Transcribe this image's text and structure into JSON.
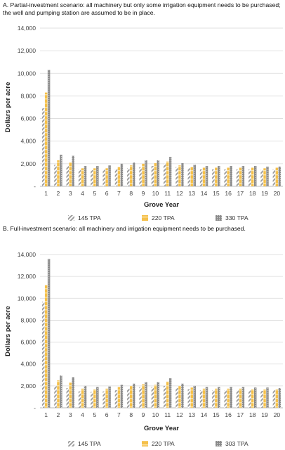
{
  "panels": [
    {
      "title": "A. Partial-investment scenario: all machinery but only some irrigation equipment needs to be purchased; the well and pumping station are assumed to be in place."
    },
    {
      "title": "B. Full-investment scenario: all machinery and irrigation equipment needs to be purchased."
    }
  ],
  "colors": {
    "s1": "#9e9e9e",
    "s2": "#f5c04a",
    "s3": "#8a8a8a",
    "grid": "#d9d9d9"
  },
  "chart_data": [
    {
      "type": "bar",
      "title": "A. Partial-investment scenario: all machinery but only some irrigation equipment needs to be purchased; the well and pumping station are assumed to be in place.",
      "xlabel": "Grove Year",
      "ylabel": "Dollars per acre",
      "ylim": [
        0,
        14000
      ],
      "yticks": [
        "-",
        "2,000",
        "4,000",
        "6,000",
        "8,000",
        "10,000",
        "12,000",
        "14,000"
      ],
      "grid": true,
      "legend": "bottom",
      "categories": [
        "1",
        "2",
        "3",
        "4",
        "5",
        "6",
        "7",
        "8",
        "9",
        "10",
        "11",
        "12",
        "13",
        "14",
        "15",
        "16",
        "17",
        "18",
        "19",
        "20"
      ],
      "series": [
        {
          "name": "145 TPA",
          "values": [
            6900,
            1900,
            1800,
            1500,
            1450,
            1500,
            1550,
            1600,
            1700,
            1800,
            2000,
            1700,
            1600,
            1500,
            1500,
            1500,
            1500,
            1500,
            1450,
            1500
          ]
        },
        {
          "name": "220 TPA",
          "values": [
            8300,
            2300,
            2100,
            1600,
            1600,
            1600,
            1700,
            1850,
            2000,
            2050,
            2200,
            1850,
            1700,
            1650,
            1650,
            1650,
            1650,
            1650,
            1600,
            1650
          ]
        },
        {
          "name": "330 TPA",
          "values": [
            10300,
            2800,
            2700,
            1800,
            1800,
            1850,
            2000,
            2100,
            2300,
            2300,
            2600,
            2050,
            1900,
            1800,
            1800,
            1800,
            1800,
            1800,
            1750,
            1750
          ]
        }
      ]
    },
    {
      "type": "bar",
      "title": "B. Full-investment scenario: all machinery and irrigation equipment needs to be purchased.",
      "xlabel": "Grove Year",
      "ylabel": "Dollars per acre",
      "ylim": [
        0,
        14000
      ],
      "yticks": [
        "-",
        "2,000",
        "4,000",
        "6,000",
        "8,000",
        "10,000",
        "12,000",
        "14,000"
      ],
      "grid": true,
      "legend": "bottom",
      "categories": [
        "1",
        "2",
        "3",
        "4",
        "5",
        "6",
        "7",
        "8",
        "9",
        "10",
        "11",
        "12",
        "13",
        "14",
        "15",
        "16",
        "17",
        "18",
        "19",
        "20"
      ],
      "series": [
        {
          "name": "145 TPA",
          "values": [
            9700,
            2000,
            1800,
            1500,
            1450,
            1500,
            1600,
            1750,
            1900,
            1900,
            2000,
            1800,
            1700,
            1600,
            1600,
            1600,
            1600,
            1600,
            1550,
            1600
          ]
        },
        {
          "name": "220 TPA",
          "values": [
            11200,
            2500,
            2300,
            1750,
            1700,
            1750,
            1900,
            2000,
            2150,
            2100,
            2400,
            2000,
            1850,
            1750,
            1750,
            1750,
            1750,
            1700,
            1700,
            1700
          ]
        },
        {
          "name": "303 TPA",
          "values": [
            13600,
            2950,
            2800,
            2000,
            1900,
            1950,
            2100,
            2200,
            2350,
            2350,
            2700,
            2200,
            2000,
            1900,
            1900,
            1900,
            1900,
            1850,
            1850,
            1800
          ]
        }
      ]
    }
  ]
}
